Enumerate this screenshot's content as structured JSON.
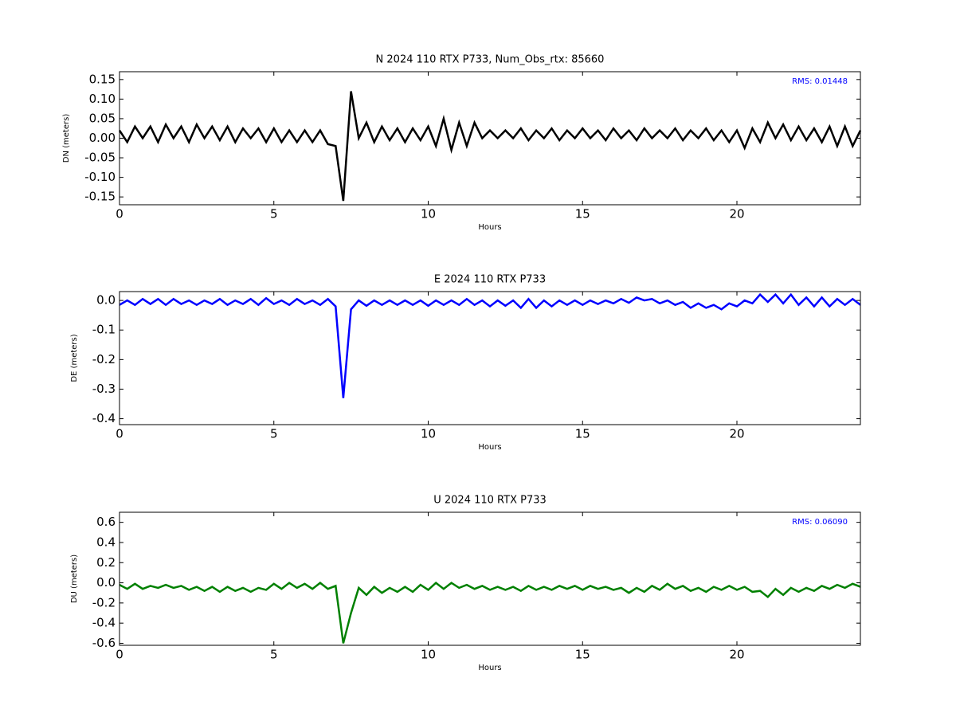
{
  "chart_data": [
    {
      "type": "line",
      "title": "N 2024 110 RTX  P733, Num_Obs_rtx: 85660",
      "xlabel": "Hours",
      "ylabel": "DN (meters)",
      "annotation": "RMS:  0.01448",
      "annotation_color": "#0000ff",
      "color": "#000000",
      "xlim": [
        0,
        24
      ],
      "xticks": [
        0,
        5,
        10,
        15,
        20
      ],
      "ylim": [
        -0.17,
        0.17
      ],
      "yticks": [
        -0.15,
        {
          "value": -0.1,
          "label": "-0.10"
        },
        -0.05,
        {
          "value": 0,
          "label": "0.00"
        },
        0.05,
        {
          "value": 0.1,
          "label": "0.10"
        },
        0.15
      ],
      "x": [
        0,
        0.25,
        0.5,
        0.75,
        1,
        1.25,
        1.5,
        1.75,
        2,
        2.25,
        2.5,
        2.75,
        3,
        3.25,
        3.5,
        3.75,
        4,
        4.25,
        4.5,
        4.75,
        5,
        5.25,
        5.5,
        5.75,
        6,
        6.25,
        6.5,
        6.75,
        7,
        7.25,
        7.5,
        7.75,
        8,
        8.25,
        8.5,
        8.75,
        9,
        9.25,
        9.5,
        9.75,
        10,
        10.25,
        10.5,
        10.75,
        11,
        11.25,
        11.5,
        11.75,
        12,
        12.25,
        12.5,
        12.75,
        13,
        13.25,
        13.5,
        13.75,
        14,
        14.25,
        14.5,
        14.75,
        15,
        15.25,
        15.5,
        15.75,
        16,
        16.25,
        16.5,
        16.75,
        17,
        17.25,
        17.5,
        17.75,
        18,
        18.25,
        18.5,
        18.75,
        19,
        19.25,
        19.5,
        19.75,
        20,
        20.25,
        20.5,
        20.75,
        21,
        21.25,
        21.5,
        21.75,
        22,
        22.25,
        22.5,
        22.75,
        23,
        23.25,
        23.5,
        23.75,
        24
      ],
      "values": [
        0.02,
        -0.01,
        0.03,
        0.0,
        0.03,
        -0.01,
        0.035,
        0.0,
        0.03,
        -0.01,
        0.035,
        0.0,
        0.03,
        -0.005,
        0.03,
        -0.01,
        0.025,
        0.0,
        0.025,
        -0.01,
        0.025,
        -0.01,
        0.02,
        -0.01,
        0.02,
        -0.01,
        0.02,
        -0.015,
        -0.02,
        -0.16,
        0.12,
        0.0,
        0.04,
        -0.01,
        0.03,
        -0.005,
        0.025,
        -0.01,
        0.025,
        -0.005,
        0.03,
        -0.02,
        0.05,
        -0.03,
        0.04,
        -0.02,
        0.04,
        0.0,
        0.02,
        0.0,
        0.02,
        0.0,
        0.025,
        -0.005,
        0.02,
        0.0,
        0.025,
        -0.005,
        0.02,
        0.0,
        0.025,
        0.0,
        0.02,
        -0.005,
        0.025,
        0.0,
        0.02,
        -0.005,
        0.025,
        0.0,
        0.02,
        0.0,
        0.025,
        -0.005,
        0.02,
        0.0,
        0.025,
        -0.005,
        0.02,
        -0.01,
        0.02,
        -0.025,
        0.025,
        -0.01,
        0.04,
        0.0,
        0.035,
        -0.005,
        0.03,
        -0.005,
        0.025,
        -0.01,
        0.03,
        -0.02,
        0.03,
        -0.02,
        0.02
      ]
    },
    {
      "type": "line",
      "title": "E 2024 110 RTX  P733",
      "xlabel": "Hours",
      "ylabel": "DE (meters)",
      "color": "#0000ff",
      "xlim": [
        0,
        24
      ],
      "xticks": [
        0,
        5,
        10,
        15,
        20
      ],
      "ylim": [
        -0.42,
        0.03
      ],
      "yticks": [
        -0.4,
        -0.3,
        -0.2,
        -0.1,
        {
          "value": 0,
          "label": "0.0"
        }
      ],
      "x": [
        0,
        0.25,
        0.5,
        0.75,
        1,
        1.25,
        1.5,
        1.75,
        2,
        2.25,
        2.5,
        2.75,
        3,
        3.25,
        3.5,
        3.75,
        4,
        4.25,
        4.5,
        4.75,
        5,
        5.25,
        5.5,
        5.75,
        6,
        6.25,
        6.5,
        6.75,
        7,
        7.25,
        7.5,
        7.75,
        8,
        8.25,
        8.5,
        8.75,
        9,
        9.25,
        9.5,
        9.75,
        10,
        10.25,
        10.5,
        10.75,
        11,
        11.25,
        11.5,
        11.75,
        12,
        12.25,
        12.5,
        12.75,
        13,
        13.25,
        13.5,
        13.75,
        14,
        14.25,
        14.5,
        14.75,
        15,
        15.25,
        15.5,
        15.75,
        16,
        16.25,
        16.5,
        16.75,
        17,
        17.25,
        17.5,
        17.75,
        18,
        18.25,
        18.5,
        18.75,
        19,
        19.25,
        19.5,
        19.75,
        20,
        20.25,
        20.5,
        20.75,
        21,
        21.25,
        21.5,
        21.75,
        22,
        22.25,
        22.5,
        22.75,
        23,
        23.25,
        23.5,
        23.75,
        24
      ],
      "values": [
        -0.015,
        0.0,
        -0.015,
        0.005,
        -0.012,
        0.005,
        -0.015,
        0.005,
        -0.012,
        0.0,
        -0.015,
        0.0,
        -0.012,
        0.005,
        -0.015,
        0.0,
        -0.012,
        0.005,
        -0.015,
        0.008,
        -0.012,
        0.0,
        -0.015,
        0.005,
        -0.012,
        0.0,
        -0.015,
        0.005,
        -0.02,
        -0.33,
        -0.03,
        0.0,
        -0.018,
        0.0,
        -0.015,
        0.0,
        -0.015,
        0.0,
        -0.015,
        0.0,
        -0.018,
        0.0,
        -0.015,
        0.0,
        -0.015,
        0.005,
        -0.015,
        0.0,
        -0.02,
        0.0,
        -0.018,
        0.0,
        -0.025,
        0.005,
        -0.025,
        0.0,
        -0.02,
        0.0,
        -0.015,
        0.0,
        -0.015,
        0.0,
        -0.012,
        0.0,
        -0.01,
        0.005,
        -0.008,
        0.01,
        0.0,
        0.005,
        -0.01,
        0.0,
        -0.015,
        -0.005,
        -0.025,
        -0.01,
        -0.025,
        -0.015,
        -0.03,
        -0.01,
        -0.02,
        0.0,
        -0.01,
        0.02,
        -0.005,
        0.02,
        -0.01,
        0.02,
        -0.015,
        0.01,
        -0.02,
        0.01,
        -0.02,
        0.005,
        -0.015,
        0.005,
        -0.015
      ]
    },
    {
      "type": "line",
      "title": "U 2024 110 RTX  P733",
      "xlabel": "Hours",
      "ylabel": "DU (meters)",
      "annotation": "RMS:  0.06090",
      "annotation_color": "#0000ff",
      "color": "#008000",
      "xlim": [
        0,
        24
      ],
      "xticks": [
        0,
        5,
        10,
        15,
        20
      ],
      "ylim": [
        -0.62,
        0.7
      ],
      "yticks": [
        -0.6,
        -0.4,
        -0.2,
        {
          "value": 0,
          "label": "0.0"
        },
        0.2,
        0.4,
        0.6
      ],
      "x": [
        0,
        0.25,
        0.5,
        0.75,
        1,
        1.25,
        1.5,
        1.75,
        2,
        2.25,
        2.5,
        2.75,
        3,
        3.25,
        3.5,
        3.75,
        4,
        4.25,
        4.5,
        4.75,
        5,
        5.25,
        5.5,
        5.75,
        6,
        6.25,
        6.5,
        6.75,
        7,
        7.25,
        7.5,
        7.75,
        8,
        8.25,
        8.5,
        8.75,
        9,
        9.25,
        9.5,
        9.75,
        10,
        10.25,
        10.5,
        10.75,
        11,
        11.25,
        11.5,
        11.75,
        12,
        12.25,
        12.5,
        12.75,
        13,
        13.25,
        13.5,
        13.75,
        14,
        14.25,
        14.5,
        14.75,
        15,
        15.25,
        15.5,
        15.75,
        16,
        16.25,
        16.5,
        16.75,
        17,
        17.25,
        17.5,
        17.75,
        18,
        18.25,
        18.5,
        18.75,
        19,
        19.25,
        19.5,
        19.75,
        20,
        20.25,
        20.5,
        20.75,
        21,
        21.25,
        21.5,
        21.75,
        22,
        22.25,
        22.5,
        22.75,
        23,
        23.25,
        23.5,
        23.75,
        24
      ],
      "values": [
        -0.02,
        -0.06,
        -0.01,
        -0.06,
        -0.03,
        -0.05,
        -0.02,
        -0.05,
        -0.03,
        -0.07,
        -0.04,
        -0.08,
        -0.04,
        -0.09,
        -0.04,
        -0.08,
        -0.05,
        -0.09,
        -0.05,
        -0.07,
        -0.01,
        -0.06,
        0.0,
        -0.05,
        -0.01,
        -0.06,
        0.0,
        -0.06,
        -0.03,
        -0.6,
        -0.3,
        -0.05,
        -0.12,
        -0.04,
        -0.1,
        -0.05,
        -0.09,
        -0.04,
        -0.09,
        -0.02,
        -0.07,
        0.0,
        -0.06,
        0.0,
        -0.05,
        -0.02,
        -0.06,
        -0.03,
        -0.07,
        -0.04,
        -0.07,
        -0.04,
        -0.08,
        -0.03,
        -0.07,
        -0.04,
        -0.07,
        -0.03,
        -0.06,
        -0.03,
        -0.07,
        -0.03,
        -0.06,
        -0.04,
        -0.07,
        -0.05,
        -0.1,
        -0.05,
        -0.09,
        -0.03,
        -0.07,
        -0.01,
        -0.06,
        -0.03,
        -0.08,
        -0.05,
        -0.09,
        -0.04,
        -0.07,
        -0.03,
        -0.07,
        -0.04,
        -0.09,
        -0.08,
        -0.14,
        -0.06,
        -0.12,
        -0.05,
        -0.09,
        -0.05,
        -0.08,
        -0.03,
        -0.06,
        -0.02,
        -0.05,
        -0.01,
        -0.04
      ]
    }
  ]
}
